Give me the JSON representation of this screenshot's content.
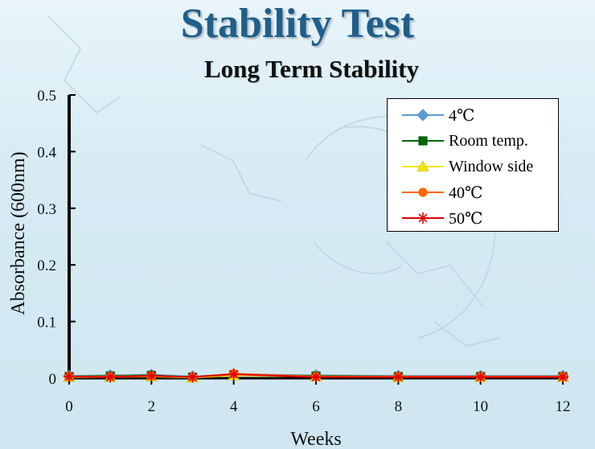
{
  "page": {
    "title": "Stability Test",
    "subtitle": "Long Term Stability"
  },
  "chart_data": {
    "type": "line",
    "xlabel": "Weeks",
    "ylabel": "Absorbance (600nm)",
    "xlim": [
      0,
      12
    ],
    "ylim": [
      0,
      0.5
    ],
    "x_ticks": [
      "0",
      "2",
      "4",
      "6",
      "8",
      "10",
      "12"
    ],
    "y_ticks": [
      "0",
      "0.1",
      "0.2",
      "0.3",
      "0.4",
      "0.5"
    ],
    "grid": false,
    "legend_position": "top-right",
    "x": [
      0,
      1,
      2,
      3,
      4,
      6,
      8,
      10,
      12
    ],
    "series": [
      {
        "name": "4℃",
        "values": [
          0.004,
          0.005,
          0.006,
          0.003,
          0.007,
          0.005,
          0.004,
          0.004,
          0.004
        ],
        "color": "#5b9bd5",
        "marker": "diamond"
      },
      {
        "name": "Room temp.",
        "values": [
          0.003,
          0.004,
          0.005,
          0.002,
          0.006,
          0.004,
          0.003,
          0.003,
          0.003
        ],
        "color": "#006400",
        "marker": "square"
      },
      {
        "name": "Window side",
        "values": [
          0.002,
          0.002,
          0.003,
          0.001,
          0.005,
          0.003,
          0.002,
          0.002,
          0.002
        ],
        "color": "#f2e600",
        "marker": "triangle"
      },
      {
        "name": "40℃",
        "values": [
          0.003,
          0.003,
          0.004,
          0.002,
          0.008,
          0.003,
          0.003,
          0.003,
          0.003
        ],
        "color": "#ff6600",
        "marker": "circle"
      },
      {
        "name": "50℃",
        "values": [
          0.003,
          0.002,
          0.004,
          0.002,
          0.007,
          0.002,
          0.002,
          0.002,
          0.002
        ],
        "color": "#e00000",
        "marker": "star"
      }
    ]
  }
}
